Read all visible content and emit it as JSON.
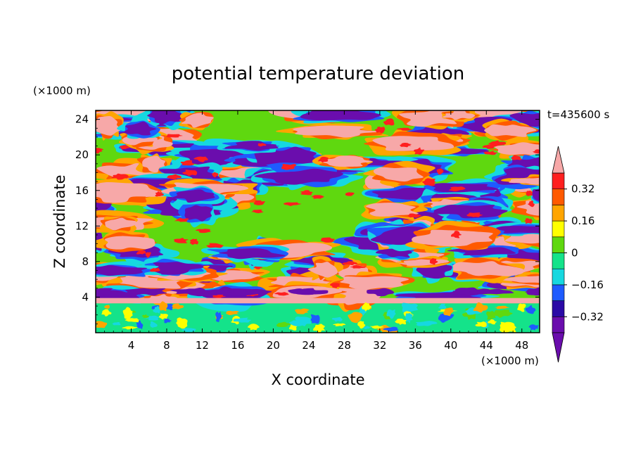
{
  "chart_data": {
    "type": "heatmap",
    "title": "potential temperature deviation",
    "xlabel": "X coordinate",
    "ylabel": "Z coordinate",
    "x_unit": "(×1000 m)",
    "y_unit": "(×1000 m)",
    "time_label": "t=435600 s",
    "xlim": [
      0,
      50
    ],
    "ylim": [
      0,
      25
    ],
    "x_ticks": [
      4,
      8,
      12,
      16,
      20,
      24,
      28,
      32,
      36,
      40,
      44,
      48
    ],
    "y_ticks": [
      4,
      8,
      12,
      16,
      20,
      24
    ],
    "colorbar": {
      "levels": [
        -0.4,
        -0.32,
        -0.24,
        -0.16,
        -0.08,
        0,
        0.08,
        0.16,
        0.24,
        0.32,
        0.4
      ],
      "labels": [
        "0.32",
        "0.16",
        "0",
        "−0.16",
        "−0.32"
      ],
      "label_values": [
        0.32,
        0.16,
        0,
        -0.16,
        -0.32
      ],
      "colors": [
        "#6a0dad",
        "#2a0aa6",
        "#1e5bff",
        "#16d8e0",
        "#14e38a",
        "#5fd80f",
        "#ffff00",
        "#ffa500",
        "#ff5a00",
        "#ff1f1f",
        "#f7a8a8"
      ],
      "extend": "both"
    }
  }
}
